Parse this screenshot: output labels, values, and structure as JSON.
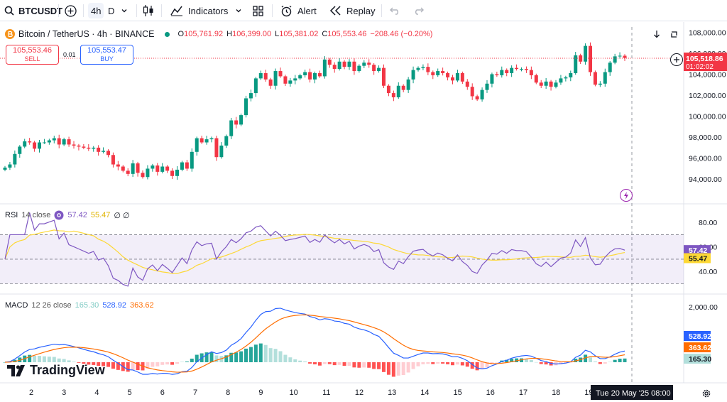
{
  "toolbar": {
    "symbol": "BTCUSDT",
    "tf_4h": "4h",
    "tf_d": "D",
    "indicators": "Indicators",
    "alert": "Alert",
    "replay": "Replay"
  },
  "legend": {
    "title": "Bitcoin / TetherUS · 4h · BINANCE",
    "o_lbl": "O",
    "o_val": "105,761.92",
    "h_lbl": "H",
    "h_val": "106,399.00",
    "l_lbl": "L",
    "l_val": "105,381.02",
    "c_lbl": "C",
    "c_val": "105,553.46",
    "change": "−208.46 (−0.20%)"
  },
  "trade": {
    "sell_price": "105,553.46",
    "sell_label": "SELL",
    "spread": "0.01",
    "buy_price": "105,553.47",
    "buy_label": "BUY"
  },
  "price_axis": {
    "ticks": [
      "108,000.00",
      "106,000.00",
      "104,000.00",
      "102,000.00",
      "100,000.00",
      "98,000.00",
      "96,000.00",
      "94,000.00"
    ],
    "current_price": "105,518.86",
    "countdown": "01:02:02"
  },
  "rsi": {
    "label": "RSI",
    "params": "14 close",
    "rsi_val": "57.42",
    "ma_val": "55.47",
    "extra": "∅ ∅",
    "ticks": [
      "80.00",
      "60.00",
      "40.00"
    ],
    "badge_rsi": "57.42",
    "badge_ma": "55.47"
  },
  "macd": {
    "label": "MACD",
    "params": "12 26 close",
    "hist_val": "165.30",
    "macd_val": "528.92",
    "signal_val": "363.62",
    "ticks": [
      "2,000.00"
    ],
    "badge_macd": "528.92",
    "badge_signal": "363.62",
    "badge_hist": "165.30"
  },
  "time_axis": {
    "ticks": [
      "2",
      "3",
      "4",
      "5",
      "6",
      "7",
      "8",
      "9",
      "10",
      "11",
      "12",
      "13",
      "14",
      "15",
      "16",
      "17",
      "18",
      "19"
    ],
    "crosshair_label": "Tue 20 May '25   08:00"
  },
  "brand": "TradingView",
  "colors": {
    "up": "#089981",
    "down": "#f23645",
    "rsi": "#7e57c2",
    "rsi_ma": "#fdd835",
    "macd": "#2962ff",
    "signal": "#ff6d00",
    "accent": "#2962ff"
  },
  "chart_data": {
    "type": "candlestick",
    "symbol": "Bitcoin / TetherUS",
    "interval": "4h",
    "exchange": "BINANCE",
    "ylim": [
      93000,
      108500
    ],
    "x_tick_labels": [
      "2",
      "3",
      "4",
      "5",
      "6",
      "7",
      "8",
      "9",
      "10",
      "11",
      "12",
      "13",
      "14",
      "15",
      "16",
      "17",
      "18",
      "19"
    ],
    "closes": [
      95100,
      95400,
      96400,
      97100,
      97600,
      97500,
      96900,
      97500,
      97500,
      97700,
      97900,
      97300,
      97800,
      97300,
      97200,
      97100,
      97000,
      96900,
      97000,
      96600,
      96700,
      96300,
      95400,
      95200,
      94800,
      94500,
      95500,
      94600,
      94200,
      95000,
      95300,
      94700,
      95200,
      94800,
      94300,
      94900,
      95600,
      95000,
      96600,
      97900,
      97500,
      97800,
      97900,
      96100,
      97200,
      98100,
      99600,
      99200,
      100100,
      101700,
      102200,
      103600,
      104100,
      103500,
      102900,
      104300,
      103800,
      103100,
      103400,
      103600,
      103900,
      104200,
      103500,
      104100,
      103800,
      105400,
      104900,
      104500,
      105200,
      104700,
      105200,
      104300,
      104800,
      105100,
      104900,
      104300,
      104600,
      102900,
      102200,
      101800,
      102900,
      102500,
      103500,
      104400,
      104600,
      104700,
      104200,
      103900,
      104300,
      104100,
      103700,
      103400,
      104100,
      103300,
      102800,
      101900,
      101600,
      102500,
      103100,
      104000,
      103900,
      104400,
      104100,
      104600,
      104500,
      104500,
      104400,
      103900,
      103200,
      102900,
      103300,
      102800,
      103200,
      103600,
      103700,
      104100,
      105800,
      105200,
      106700,
      104200,
      103000,
      103100,
      104200,
      105100,
      105700,
      105760,
      105553
    ],
    "rsi_range": [
      25,
      90
    ],
    "rsi_bands": [
      30,
      70
    ],
    "rsi_last": 57.42,
    "rsi_ma_last": 55.47,
    "macd_last": 528.92,
    "signal_last": 363.62,
    "hist_last": 165.3,
    "macd_peak": 1950
  }
}
